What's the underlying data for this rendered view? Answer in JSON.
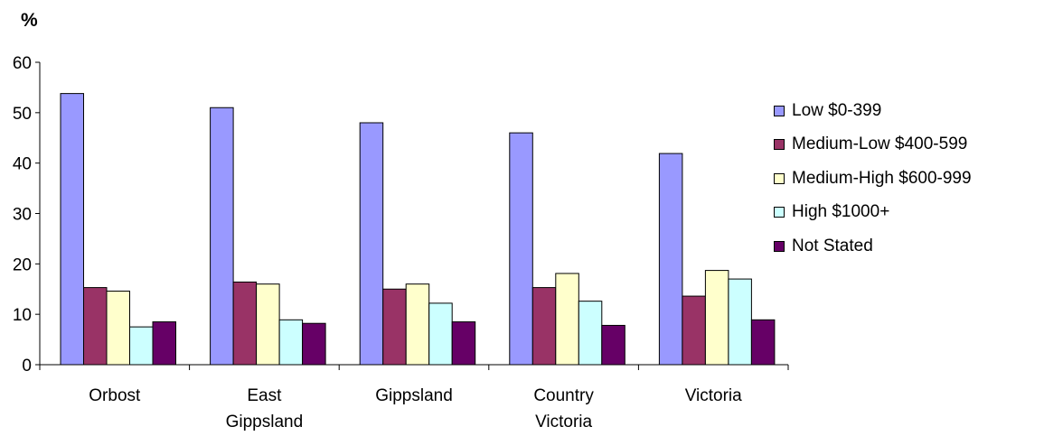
{
  "chart_data": {
    "type": "bar",
    "ylabel": "%",
    "ylim": [
      0,
      60
    ],
    "yticks": [
      0,
      10,
      20,
      30,
      40,
      50,
      60
    ],
    "categories": [
      [
        "Orbost"
      ],
      [
        "East",
        "Gippsland"
      ],
      [
        "Gippsland"
      ],
      [
        "Country",
        "Victoria"
      ],
      [
        "Victoria"
      ]
    ],
    "series": [
      {
        "name": "Low $0-399",
        "color": "#9999ff",
        "values": [
          53.8,
          51.0,
          48.0,
          46.0,
          41.9
        ]
      },
      {
        "name": "Medium-Low $400-599",
        "color": "#993366",
        "values": [
          15.3,
          16.4,
          15.0,
          15.3,
          13.6
        ]
      },
      {
        "name": "Medium-High $600-999",
        "color": "#ffffcc",
        "values": [
          14.6,
          16.0,
          16.0,
          18.1,
          18.7
        ]
      },
      {
        "name": "High $1000+",
        "color": "#ccffff",
        "values": [
          7.5,
          8.9,
          12.2,
          12.6,
          17.0
        ]
      },
      {
        "name": "Not Stated",
        "color": "#660066",
        "values": [
          8.5,
          8.2,
          8.5,
          7.8,
          8.9
        ]
      }
    ],
    "grid": false,
    "legend_position": "right"
  }
}
